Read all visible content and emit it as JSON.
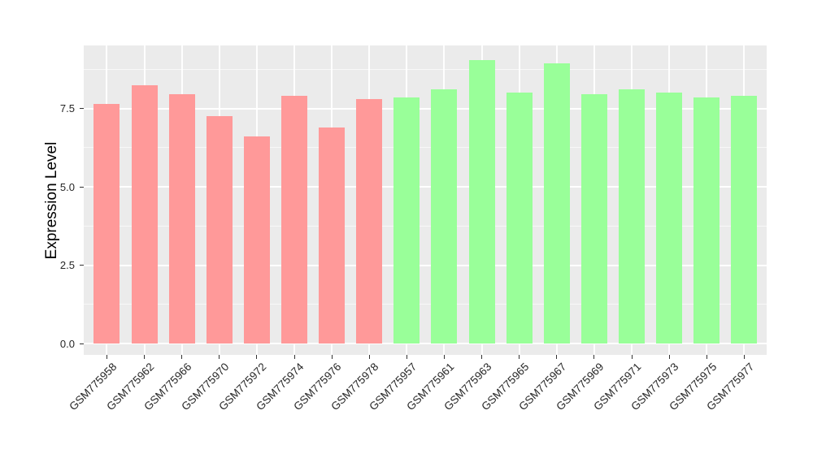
{
  "chart_data": {
    "type": "bar",
    "title": "",
    "xlabel": "",
    "ylabel": "Expression Level",
    "ylim": [
      0,
      9.5
    ],
    "ytick_values": [
      0,
      2.5,
      5,
      7.5
    ],
    "ytick_labels": [
      "0.0",
      "2.5",
      "5.0",
      "7.5"
    ],
    "minor_gridline_values": [
      1.25,
      3.75,
      6.25,
      8.75
    ],
    "grid": "on",
    "legend_position": "none",
    "panel_background": "#EBEBEB",
    "gridline_color": "#FFFFFF",
    "group_colors": {
      "left_group": "#FF9999",
      "right_group": "#99FF99"
    },
    "categories": [
      "GSM775958",
      "GSM775962",
      "GSM775966",
      "GSM775970",
      "GSM775972",
      "GSM775974",
      "GSM775976",
      "GSM775978",
      "GSM775957",
      "GSM775961",
      "GSM775963",
      "GSM775965",
      "GSM775967",
      "GSM775969",
      "GSM775971",
      "GSM775973",
      "GSM775975",
      "GSM775977"
    ],
    "values": [
      7.65,
      8.25,
      7.95,
      7.25,
      6.6,
      7.9,
      6.9,
      7.8,
      7.85,
      8.1,
      9.05,
      8.0,
      8.95,
      7.95,
      8.1,
      8.0,
      7.85,
      7.9
    ],
    "colors": [
      "#FF9999",
      "#FF9999",
      "#FF9999",
      "#FF9999",
      "#FF9999",
      "#FF9999",
      "#FF9999",
      "#FF9999",
      "#99FF99",
      "#99FF99",
      "#99FF99",
      "#99FF99",
      "#99FF99",
      "#99FF99",
      "#99FF99",
      "#99FF99",
      "#99FF99",
      "#99FF99"
    ]
  }
}
